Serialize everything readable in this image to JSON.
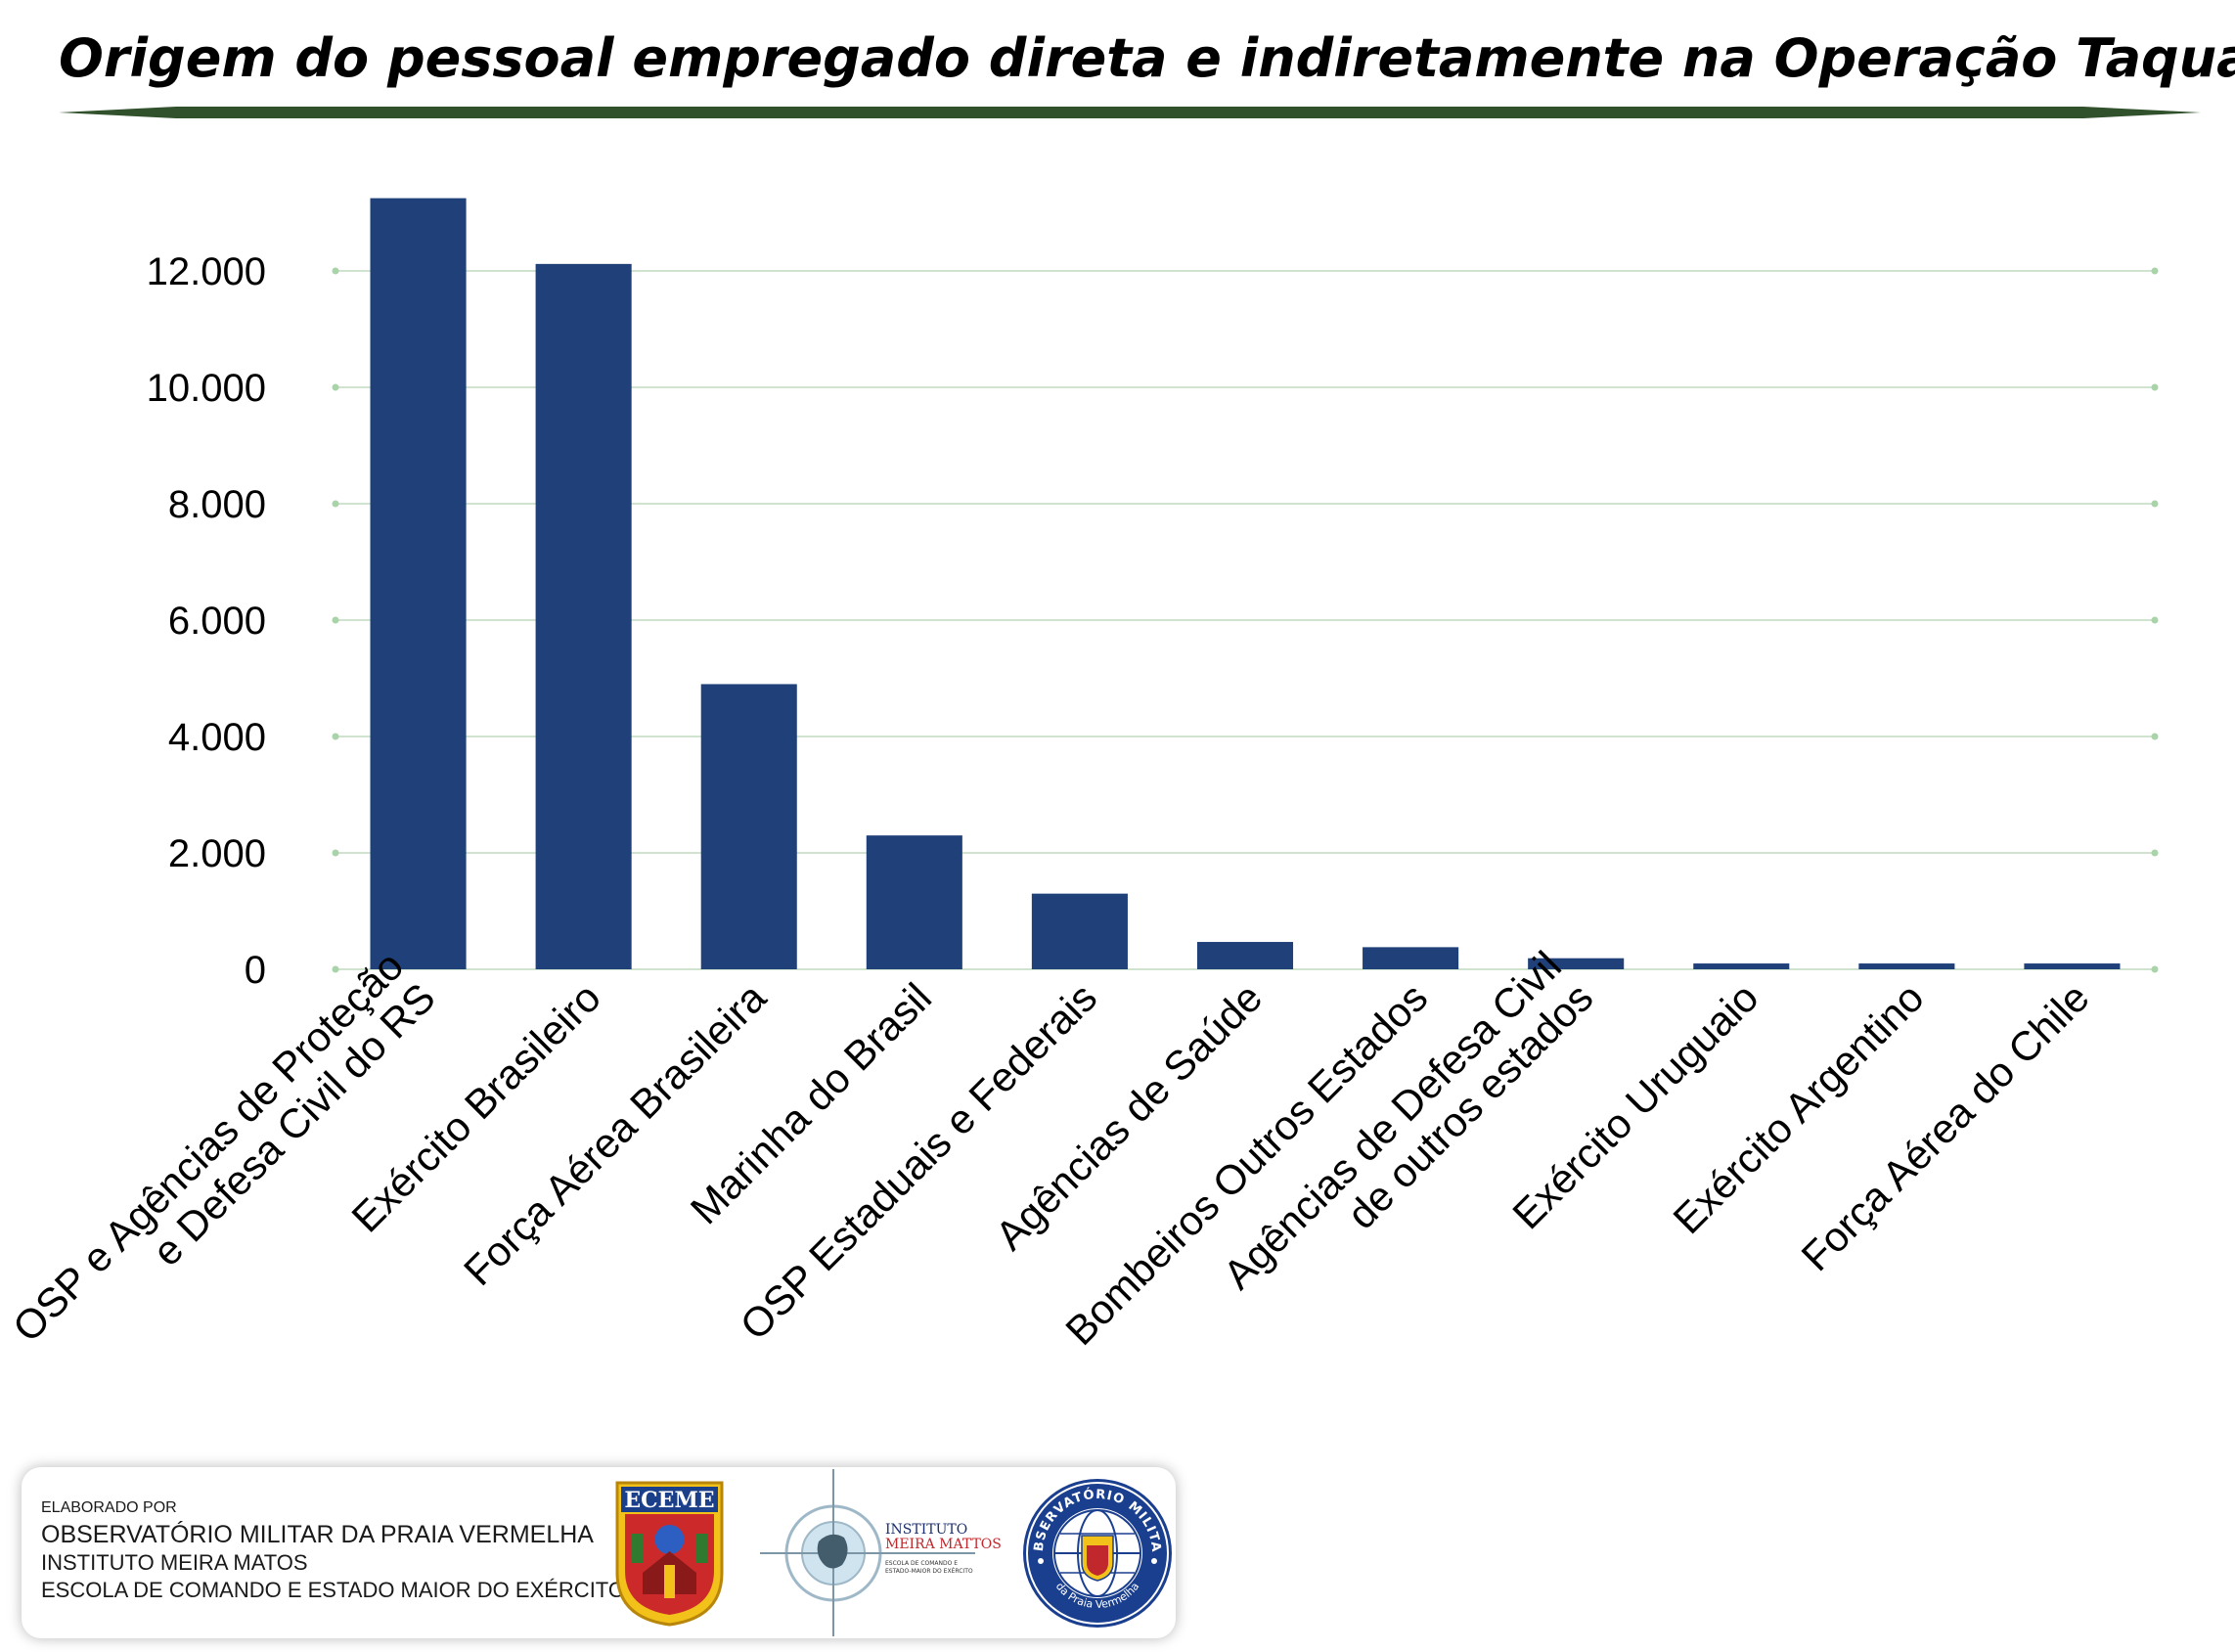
{
  "colors": {
    "bar": "#1f4079",
    "grid": "#cfe3cf",
    "grid_dot": "#a9d3a9",
    "title_bar": "#31502c"
  },
  "chart_data": {
    "type": "bar",
    "title": "Origem do pessoal empregado direta e indiretamente na Operação Taquari",
    "xlabel": "",
    "ylabel": "",
    "ylim": [
      0,
      13500
    ],
    "yticks": [
      0,
      2000,
      4000,
      6000,
      8000,
      10000,
      12000
    ],
    "ytick_labels": [
      "0",
      "2.000",
      "4.000",
      "6.000",
      "8.000",
      "10.000",
      "12.000"
    ],
    "grid": true,
    "categories": [
      [
        "OSP e Agências de Proteção",
        "e Defesa Civil do RS"
      ],
      [
        "Exército Brasileiro"
      ],
      [
        "Força Aérea Brasileira"
      ],
      [
        "Marinha do Brasil"
      ],
      [
        "OSP Estaduais e Federais"
      ],
      [
        "Agências de Saúde"
      ],
      [
        "Bombeiros Outros Estados"
      ],
      [
        "Agências de Defesa Civil",
        "de outros estados"
      ],
      [
        "Exército Uruguaio"
      ],
      [
        "Exército Argentino"
      ],
      [
        "Força Aérea do Chile"
      ]
    ],
    "values": [
      13250,
      12120,
      4900,
      2300,
      1300,
      470,
      380,
      190,
      100,
      100,
      100
    ]
  },
  "footer": {
    "line1": "ELABORADO POR",
    "line2": "OBSERVATÓRIO MILITAR DA PRAIA VERMELHA",
    "line3": "INSTITUTO MEIRA MATOS",
    "line4": "ESCOLA DE COMANDO E ESTADO MAIOR DO EXÉRCITO"
  },
  "logos": {
    "eceme": "ECEME",
    "imm_line1": "INSTITUTO",
    "imm_line2": "MEIRA MATTOS",
    "imm_sub1": "ESCOLA DE COMANDO E",
    "imm_sub2": "ESTADO-MAIOR DO EXÉRCITO",
    "ompv_top": "OBSERVATÓRIO MILITAR",
    "ompv_bottom": "da Praia Vermelha"
  }
}
